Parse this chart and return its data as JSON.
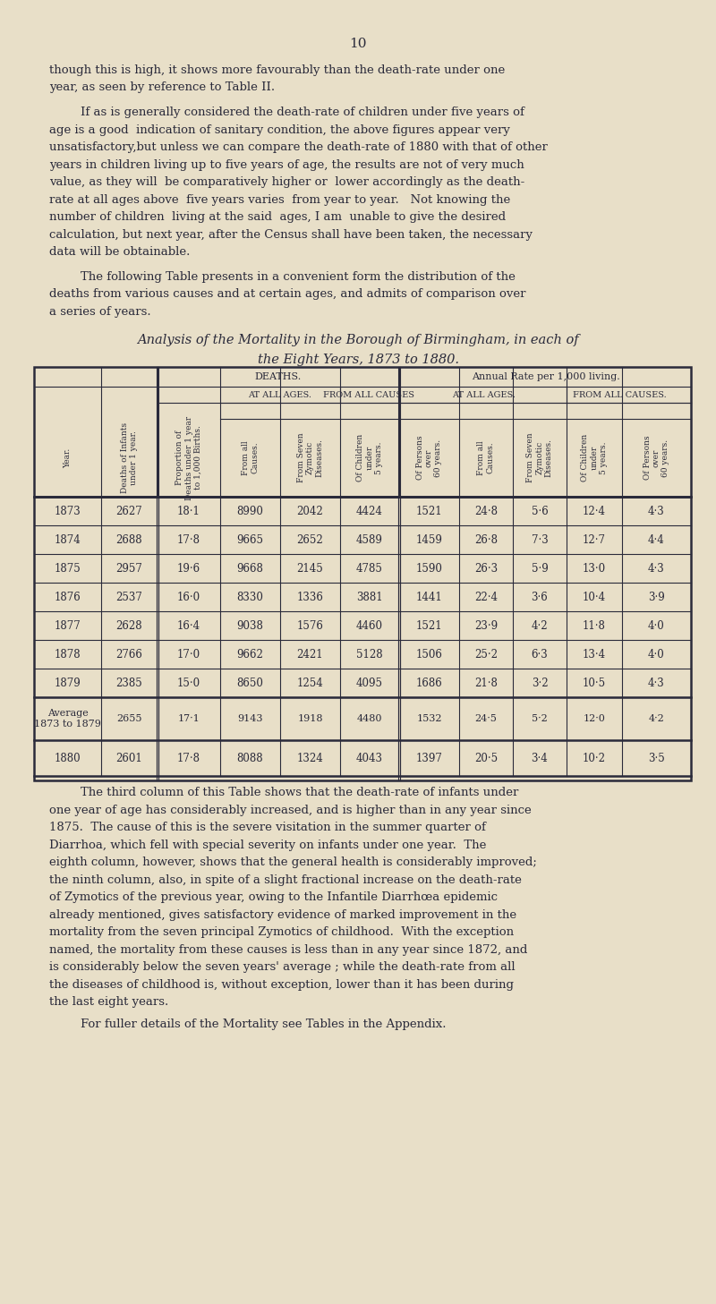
{
  "page_number": "10",
  "bg_color": "#e8dfc8",
  "text_color": "#2a2a3a",
  "page_width": 8.0,
  "page_height": 14.57,
  "dpi": 100,
  "paragraph1": "though this is high, it shows more favourably than the death-rate under one\nyear, as seen by reference to Table II.",
  "paragraph2": "If as is generally considered the death-rate of children under five years of\nage is a good  indication of sanitary condition, the above figures appear very\nunsatisfactory,but unless we can compare the death-rate of 1880 with that of other\nyears in children living up to five years of age, the results are not of very much\nvalue, as they will  be comparatively higher or  lower accordingly as the death-\nrate at all ages above  five years varies  from year to year.   Not knowing the\nnumber of children  living at the said  ages, I am  unable to give the desired\ncalculation, but next year, after the Census shall have been taken, the necessary\ndata will be obtainable.",
  "paragraph3": "The following Table presents in a convenient form the distribution of the\ndeaths from various causes and at certain ages, and admits of comparison over\na series of years.",
  "table_title1": "Analysis of the Mortality in the Borough of Birmingham, in each of",
  "table_title2": "the Eight Years, 1873 to 1880.",
  "col_headers_level1": [
    "Deaths of Infants\nunder 1 year.",
    "Proportion of\nDeaths under 1 year\nto 1,000 Births.",
    "DEATHS.",
    "Annual Rate per 1,000 living."
  ],
  "col_headers_level2_deaths": [
    "AT ALL AGES.",
    "FROM ALL CAUSES"
  ],
  "col_headers_level2_rate": [
    "AT ALL AGES.",
    "FROM ALL CAUSES."
  ],
  "col_headers_level3": [
    "From all\nCauses.",
    "From Seven\nZymotic\nDiseases.",
    "Of Children\nunder\n5 years.",
    "Of Persons\nover\n60 years.",
    "From all\nCauses.",
    "From Seven\nZymotic\nDiseases.",
    "Of Children\nunder\n5 years.",
    "Of Persons\nover\n60 years."
  ],
  "year_col": "Year.",
  "rows": [
    [
      "1873",
      "2627",
      "18·1",
      "8990",
      "2042",
      "4424",
      "1521",
      "24·8",
      "5·6",
      "12·4",
      "4·3"
    ],
    [
      "1874",
      "2688",
      "17·8",
      "9665",
      "2652",
      "4589",
      "1459",
      "26·8",
      "7·3",
      "12·7",
      "4·4"
    ],
    [
      "1875",
      "2957",
      "19·6",
      "9668",
      "2145",
      "4785",
      "1590",
      "26·3",
      "5·9",
      "13·0",
      "4·3"
    ],
    [
      "1876",
      "2537",
      "16·0",
      "8330",
      "1336",
      "3881",
      "1441",
      "22·4",
      "3·6",
      "10·4",
      "3·9"
    ],
    [
      "1877",
      "2628",
      "16·4",
      "9038",
      "1576",
      "4460",
      "1521",
      "23·9",
      "4·2",
      "11·8",
      "4·0"
    ],
    [
      "1878",
      "2766",
      "17·0",
      "9662",
      "2421",
      "5128",
      "1506",
      "25·2",
      "6·3",
      "13·4",
      "4·0"
    ],
    [
      "1879",
      "2385",
      "15·0",
      "8650",
      "1254",
      "4095",
      "1686",
      "21·8",
      "3·2",
      "10·5",
      "4·3"
    ]
  ],
  "average_row": [
    "Average\n1873 to 1879",
    "2655",
    "17·1",
    "9143",
    "1918",
    "4480",
    "1532",
    "24·5",
    "5·2",
    "12·0",
    "4·2"
  ],
  "last_row": [
    "1880",
    "2601",
    "17·8",
    "8088",
    "1324",
    "4043",
    "1397",
    "20·5",
    "3·4",
    "10·2",
    "3·5"
  ],
  "paragraph4": "The third column of this Table shows that the death-rate of infants under\none year of age has considerably increased, and is higher than in any year since\n1875.  The cause of this is the severe visitation in the summer quarter of\nDiarrhoa, which fell with special severity on infants under one year.  The\neighth column, however, shows that the general health is considerably improved;\nthe ninth column, also, in spite of a slight fractional increase on the death-rate\nof Zymotics of the previous year, owing to the Infantile Diarrhœa epidemic\nalready mentioned, gives satisfactory evidence of marked improvement in the\nmortality from the seven principal Zymotics of childhood.  With the exception\nnamed, the mortality from these causes is less than in any year since 1872, and\nis considerably below the seven years' average ; while the death-rate from all\nthe diseases of childhood is, without exception, lower than it has been during\nthe last eight years.",
  "paragraph5": "For fuller details of the Mortality see Tables in the Appendix."
}
